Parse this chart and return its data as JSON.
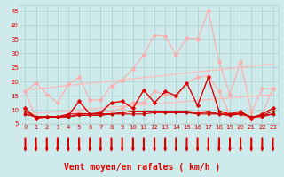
{
  "x": [
    0,
    1,
    2,
    3,
    4,
    5,
    6,
    7,
    8,
    9,
    10,
    11,
    12,
    13,
    14,
    15,
    16,
    17,
    18,
    19,
    20,
    21,
    22,
    23
  ],
  "series": [
    {
      "name": "line1_light_pink_upper",
      "color": "#ffaaaa",
      "lw": 0.8,
      "marker": "D",
      "ms": 1.8,
      "y": [
        16.5,
        19.5,
        15.5,
        12.5,
        19.0,
        21.5,
        13.5,
        13.5,
        18.5,
        20.5,
        24.5,
        29.5,
        36.5,
        36.0,
        29.5,
        35.5,
        35.0,
        45.0,
        27.0,
        15.5,
        27.0,
        9.0,
        17.5,
        17.5
      ]
    },
    {
      "name": "line2_light_pink_lower",
      "color": "#ffaaaa",
      "lw": 0.8,
      "marker": "D",
      "ms": 1.8,
      "y": [
        16.5,
        7.0,
        7.5,
        7.5,
        8.5,
        9.0,
        8.5,
        9.5,
        9.5,
        10.5,
        12.5,
        12.5,
        16.5,
        15.5,
        14.5,
        19.5,
        21.5,
        22.0,
        16.5,
        8.5,
        8.5,
        6.5,
        8.5,
        17.5
      ]
    },
    {
      "name": "line3_diagonal_upper",
      "color": "#ffbbbb",
      "lw": 0.9,
      "marker": null,
      "ms": 0,
      "y": [
        17.0,
        17.4,
        17.8,
        18.2,
        18.6,
        19.0,
        19.4,
        19.8,
        20.2,
        20.6,
        21.0,
        21.4,
        21.8,
        22.2,
        22.6,
        23.0,
        23.4,
        23.8,
        24.2,
        24.6,
        25.0,
        25.4,
        25.8,
        26.2
      ]
    },
    {
      "name": "line4_diagonal_lower",
      "color": "#ffbbbb",
      "lw": 0.9,
      "marker": null,
      "ms": 0,
      "y": [
        8.5,
        8.8,
        9.1,
        9.4,
        9.7,
        10.0,
        10.3,
        10.6,
        10.9,
        11.2,
        11.5,
        11.8,
        12.1,
        12.4,
        12.7,
        13.0,
        13.3,
        13.6,
        13.9,
        14.2,
        14.5,
        14.8,
        15.1,
        15.4
      ]
    },
    {
      "name": "line5_red_main",
      "color": "#dd0000",
      "lw": 1.0,
      "marker": "D",
      "ms": 1.8,
      "y": [
        10.5,
        7.0,
        7.5,
        7.5,
        8.0,
        13.0,
        8.5,
        9.0,
        12.5,
        13.0,
        10.5,
        17.0,
        12.5,
        16.5,
        15.0,
        19.5,
        11.5,
        21.5,
        9.5,
        8.5,
        9.5,
        7.0,
        8.5,
        10.5
      ]
    },
    {
      "name": "line6_red_flat1",
      "color": "#cc0000",
      "lw": 0.8,
      "marker": "D",
      "ms": 1.3,
      "y": [
        8.5,
        7.5,
        7.5,
        7.5,
        8.5,
        8.5,
        8.5,
        8.5,
        8.5,
        8.5,
        8.5,
        8.5,
        9.0,
        9.0,
        9.0,
        9.0,
        9.0,
        9.0,
        8.5,
        8.5,
        8.5,
        7.5,
        8.0,
        8.5
      ]
    },
    {
      "name": "line7_red_flat2",
      "color": "#cc0000",
      "lw": 0.8,
      "marker": "D",
      "ms": 1.3,
      "y": [
        8.5,
        7.5,
        7.5,
        7.5,
        7.5,
        8.5,
        8.5,
        8.5,
        8.5,
        9.0,
        9.5,
        9.5,
        9.5,
        9.0,
        9.0,
        9.0,
        8.5,
        8.5,
        8.5,
        8.0,
        8.5,
        7.5,
        7.5,
        8.5
      ]
    },
    {
      "name": "line8_red_flat3",
      "color": "#cc0000",
      "lw": 0.8,
      "marker": "D",
      "ms": 1.3,
      "y": [
        9.5,
        7.5,
        7.5,
        7.5,
        7.5,
        8.0,
        8.0,
        8.0,
        8.5,
        9.0,
        9.5,
        9.5,
        9.5,
        9.5,
        9.5,
        9.5,
        9.0,
        9.5,
        8.5,
        8.0,
        9.0,
        7.5,
        8.0,
        9.5
      ]
    }
  ],
  "xlabel": "Vent moyen/en rafales ( km/h )",
  "ylim": [
    5,
    47
  ],
  "xlim_min": -0.5,
  "xlim_max": 23.5,
  "yticks": [
    5,
    10,
    15,
    20,
    25,
    30,
    35,
    40,
    45
  ],
  "xticks": [
    0,
    1,
    2,
    3,
    4,
    5,
    6,
    7,
    8,
    9,
    10,
    11,
    12,
    13,
    14,
    15,
    16,
    17,
    18,
    19,
    20,
    21,
    22,
    23
  ],
  "bg_color": "#ceeaea",
  "grid_color": "#aacece",
  "arrow_color": "#dd0000",
  "xlabel_color": "#dd0000",
  "tick_color": "#dd0000",
  "xlabel_fontsize": 7,
  "tick_fontsize": 5
}
